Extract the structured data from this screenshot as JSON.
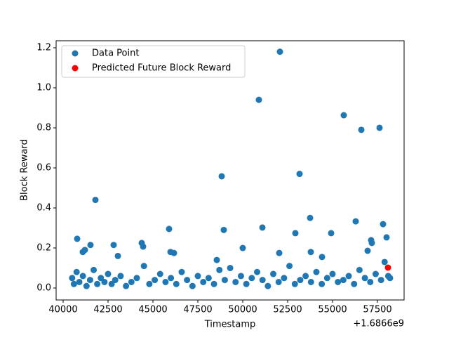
{
  "chart_data": {
    "type": "scatter",
    "x_label": "Timestamp",
    "y_label": "Block Reward",
    "x_offset_label": "+1.6866e9",
    "xlim": [
      39609,
      58984
    ],
    "ylim": [
      -0.0596,
      1.235
    ],
    "xticks": [
      40000,
      42500,
      45000,
      47500,
      50000,
      52500,
      55000,
      57500
    ],
    "yticks": [
      {
        "value": 0,
        "label": "0.0"
      },
      0.2,
      0.4,
      0.6,
      0.8,
      {
        "value": 1,
        "label": "1.0"
      },
      1.2
    ],
    "legend": "upper left",
    "series": [
      {
        "name": "Data Point",
        "color": "#1f77b4",
        "x": [
          41797,
          40781,
          41094,
          41211,
          41523,
          42813,
          43047,
          44375,
          44453,
          45898,
          45977,
          46172,
          48828,
          48945,
          48555,
          50000,
          50898,
          51094,
          52070,
          52031,
          52930,
          53164,
          53750,
          53789,
          54414,
          54922,
          55625,
          56289,
          56602,
          56953,
          57148,
          57188,
          57617,
          57813,
          58008,
          40500,
          40600,
          40750,
          40900,
          41100,
          41300,
          41500,
          41700,
          41900,
          42100,
          42300,
          42500,
          42700,
          42900,
          43200,
          43500,
          43800,
          44100,
          44500,
          44800,
          45100,
          45400,
          45700,
          46000,
          46300,
          46600,
          46900,
          47200,
          47500,
          47800,
          48100,
          48400,
          48700,
          49000,
          49300,
          49600,
          49900,
          50200,
          50500,
          50800,
          51100,
          51400,
          51700,
          52000,
          52300,
          52600,
          52900,
          53200,
          53500,
          53800,
          54100,
          54400,
          54700,
          55000,
          55300,
          55600,
          55900,
          56200,
          56500,
          56800,
          57100,
          57400,
          57700,
          57900,
          58100,
          58200
        ],
        "values": [
          0.44,
          0.246,
          0.18,
          0.19,
          0.215,
          0.215,
          0.16,
          0.225,
          0.207,
          0.295,
          0.18,
          0.175,
          0.558,
          0.29,
          0.14,
          0.2,
          0.94,
          0.302,
          1.18,
          0.175,
          0.274,
          0.57,
          0.35,
          0.18,
          0.155,
          0.274,
          0.863,
          0.333,
          0.79,
          0.186,
          0.239,
          0.225,
          0.8,
          0.319,
          0.253,
          0.05,
          0.02,
          0.08,
          0.03,
          0.06,
          0.01,
          0.04,
          0.09,
          0.02,
          0.05,
          0.03,
          0.07,
          0.02,
          0.04,
          0.06,
          0.01,
          0.03,
          0.05,
          0.11,
          0.02,
          0.04,
          0.07,
          0.03,
          0.05,
          0.02,
          0.08,
          0.04,
          0.01,
          0.06,
          0.03,
          0.05,
          0.02,
          0.09,
          0.04,
          0.1,
          0.03,
          0.06,
          0.02,
          0.05,
          0.08,
          0.04,
          0.01,
          0.07,
          0.03,
          0.05,
          0.11,
          0.02,
          0.04,
          0.06,
          0.03,
          0.08,
          0.02,
          0.05,
          0.07,
          0.03,
          0.04,
          0.06,
          0.02,
          0.09,
          0.05,
          0.03,
          0.07,
          0.04,
          0.13,
          0.06,
          0.05
        ]
      },
      {
        "name": "Predicted Future Block Reward",
        "color": "#ff0000",
        "x": [
          58086
        ],
        "values": [
          0.102
        ]
      }
    ]
  }
}
